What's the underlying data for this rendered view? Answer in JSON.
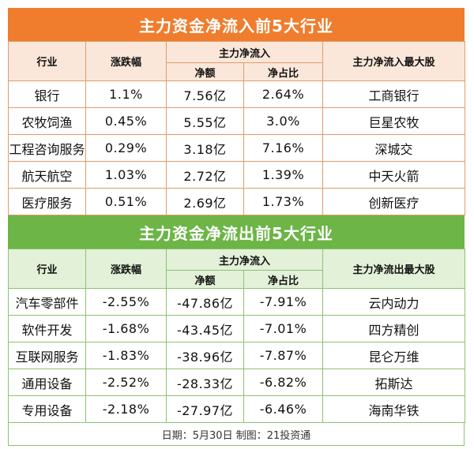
{
  "inflow": {
    "title": "主力资金净流入前5大行业",
    "headers": {
      "industry": "行业",
      "change": "涨跌幅",
      "netflow_group": "主力净流入",
      "net_amount": "净额",
      "net_ratio": "净占比",
      "top_stock": "主力净流入最大股"
    },
    "rows": [
      {
        "industry": "银行",
        "change": "1.1%",
        "net_amount": "7.56亿",
        "net_ratio": "2.64%",
        "top_stock": "工商银行"
      },
      {
        "industry": "农牧饲渔",
        "change": "0.45%",
        "net_amount": "5.55亿",
        "net_ratio": "3.0%",
        "top_stock": "巨星农牧"
      },
      {
        "industry": "工程咨询服务",
        "change": "0.29%",
        "net_amount": "3.18亿",
        "net_ratio": "7.16%",
        "top_stock": "深城交"
      },
      {
        "industry": "航天航空",
        "change": "1.03%",
        "net_amount": "2.72亿",
        "net_ratio": "1.39%",
        "top_stock": "中天火箭"
      },
      {
        "industry": "医疗服务",
        "change": "0.51%",
        "net_amount": "2.69亿",
        "net_ratio": "1.73%",
        "top_stock": "创新医疗"
      }
    ]
  },
  "outflow": {
    "title": "主力资金净流出前5大行业",
    "headers": {
      "industry": "行业",
      "change": "涨跌幅",
      "netflow_group": "主力净流入",
      "net_amount": "净额",
      "net_ratio": "净占比",
      "top_stock": "主力净流出最大股"
    },
    "rows": [
      {
        "industry": "汽车零部件",
        "change": "-2.55%",
        "net_amount": "-47.86亿",
        "net_ratio": "-7.91%",
        "top_stock": "云内动力"
      },
      {
        "industry": "软件开发",
        "change": "-1.68%",
        "net_amount": "-43.45亿",
        "net_ratio": "-7.01%",
        "top_stock": "四方精创"
      },
      {
        "industry": "互联网服务",
        "change": "-1.83%",
        "net_amount": "-38.96亿",
        "net_ratio": "-7.87%",
        "top_stock": "昆仑万维"
      },
      {
        "industry": "通用设备",
        "change": "-2.52%",
        "net_amount": "-28.33亿",
        "net_ratio": "-6.82%",
        "top_stock": "拓斯达"
      },
      {
        "industry": "专用设备",
        "change": "-2.18%",
        "net_amount": "-27.97亿",
        "net_ratio": "-6.46%",
        "top_stock": "海南华铁"
      }
    ]
  },
  "footer": "日期：5月30日 制图：21投资通",
  "colors": {
    "inflow_banner": "#ef7d2d",
    "outflow_banner": "#6cb546",
    "inflow_header_bg": "#fbe7d9",
    "outflow_header_bg": "#e2f1d8"
  }
}
